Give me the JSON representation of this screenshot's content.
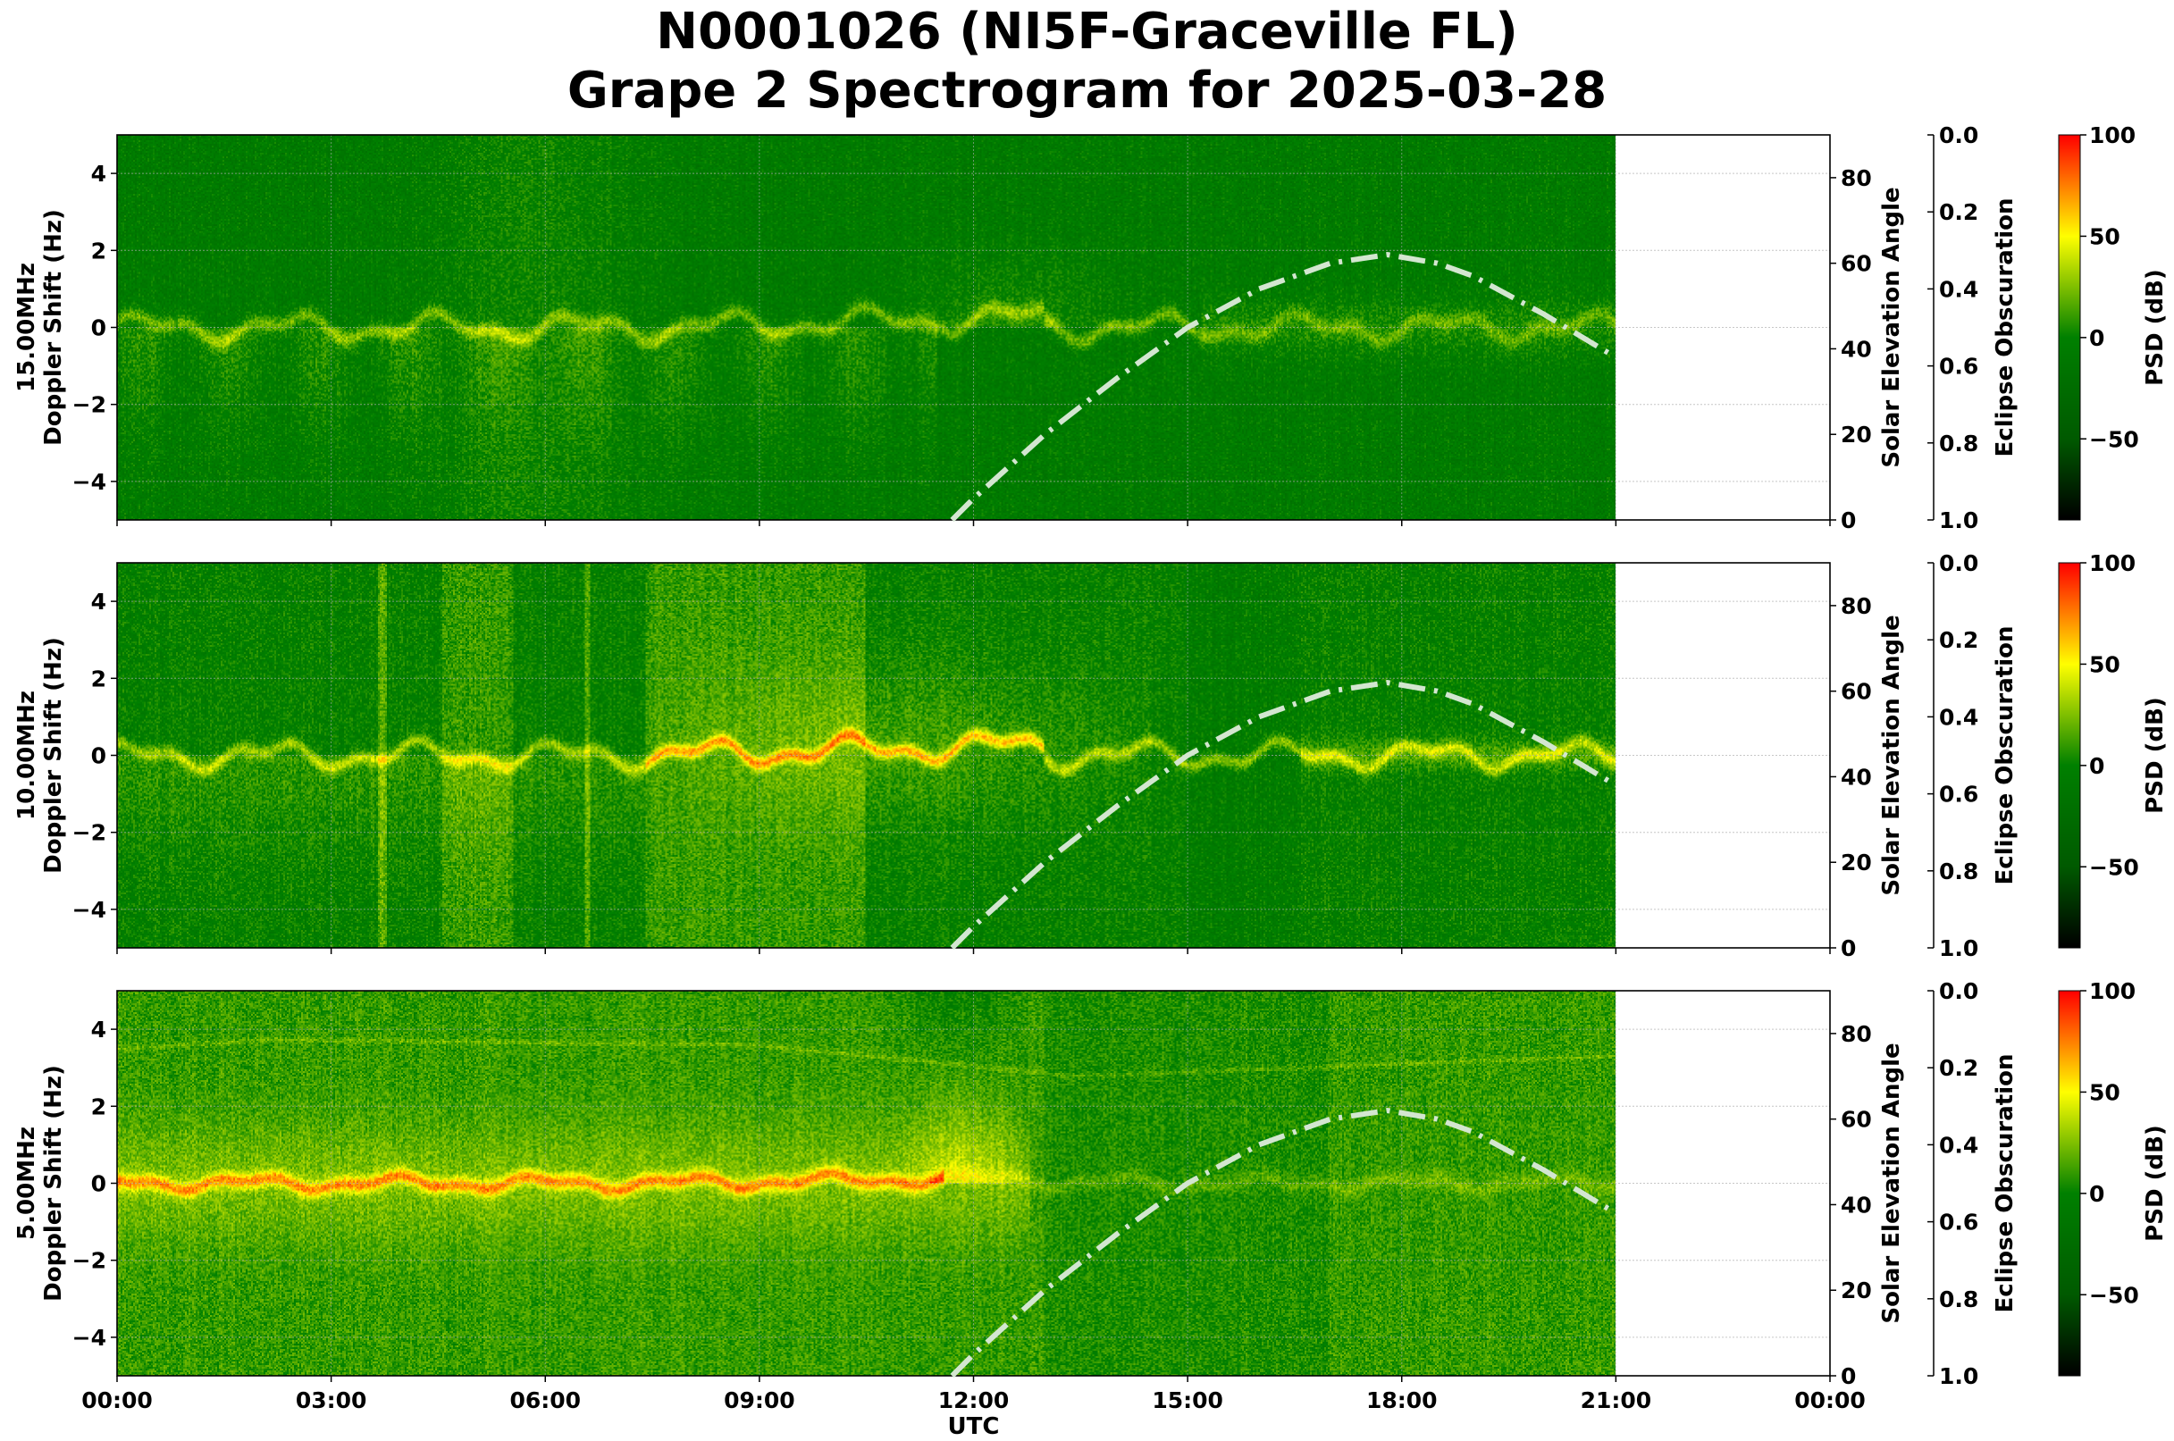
{
  "title_line1": "N0001026 (NI5F-Graceville FL)",
  "title_line2": "Grape 2 Spectrogram for 2025-03-28",
  "colors": {
    "solar_curve": "#d3e6d0",
    "grid": "#b0b0b0",
    "background": "#ffffff"
  },
  "chart_data": {
    "type": "heatmap",
    "xlabel": "UTC",
    "x_ticks": [
      "00:00",
      "03:00",
      "06:00",
      "09:00",
      "12:00",
      "15:00",
      "18:00",
      "21:00",
      "00:00"
    ],
    "x_range_hours": [
      0,
      24
    ],
    "data_end_hours": 21,
    "grid": true,
    "panels": [
      {
        "ylabel": "15.00MHz\nDoppler Shift (Hz)",
        "ylabel_freq": "15.00MHz",
        "ylabel_main": "Doppler Shift (Hz)",
        "ylim": [
          -5,
          5
        ],
        "y_ticks": [
          "4",
          "2",
          "0",
          "−2",
          "−4"
        ],
        "y_tick_values": [
          4,
          2,
          0,
          -2,
          -4
        ]
      },
      {
        "ylabel_freq": "10.00MHz",
        "ylabel_main": "Doppler Shift (Hz)",
        "ylim": [
          -5,
          5
        ],
        "y_ticks": [
          "4",
          "2",
          "0",
          "−2",
          "−4"
        ],
        "y_tick_values": [
          4,
          2,
          0,
          -2,
          -4
        ]
      },
      {
        "ylabel_freq": "5.00MHz",
        "ylabel_main": "Doppler Shift (Hz)",
        "ylim": [
          -5,
          5
        ],
        "y_ticks": [
          "4",
          "2",
          "0",
          "−2",
          "−4"
        ],
        "y_tick_values": [
          4,
          2,
          0,
          -2,
          -4
        ]
      }
    ],
    "solar_elevation": {
      "axis_label": "Solar Elevation Angle",
      "ylim": [
        0,
        90
      ],
      "ticks": [
        "0",
        "20",
        "40",
        "60",
        "80"
      ],
      "tick_values": [
        0,
        20,
        40,
        60,
        80
      ],
      "hours": [
        11.7,
        12,
        13,
        14,
        15,
        16,
        17,
        17.8,
        18.5,
        19,
        20,
        21
      ],
      "values": [
        0,
        5,
        20,
        33,
        45,
        54,
        60,
        62,
        60,
        57,
        48,
        38
      ]
    },
    "eclipse_obscuration": {
      "axis_label": "Eclipse Obscuration",
      "ylim": [
        1.0,
        0.0
      ],
      "ticks": [
        "0.0",
        "0.2",
        "0.4",
        "0.6",
        "0.8",
        "1.0"
      ],
      "tick_values": [
        0,
        0.2,
        0.4,
        0.6,
        0.8,
        1.0
      ]
    },
    "colorbar": {
      "label": "PSD (dB)",
      "range": [
        -90,
        100
      ],
      "ticks": [
        "100",
        "50",
        "0",
        "−50"
      ],
      "tick_values": [
        100,
        50,
        0,
        -50
      ],
      "colormap": [
        "#000000",
        "#006400",
        "#008000",
        "#ffff00",
        "#ff0000"
      ]
    }
  }
}
